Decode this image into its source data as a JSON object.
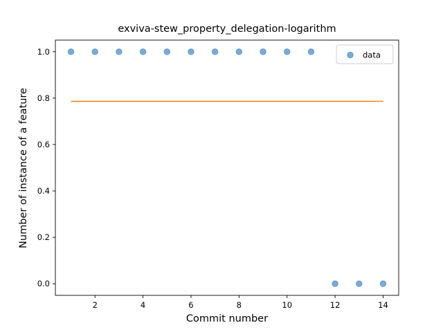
{
  "chart_data": {
    "type": "scatter",
    "title": "exviva-stew_property_delegation-logarithm",
    "xlabel": "Commit number",
    "ylabel": "Number of instance of a feature",
    "xlim": [
      0.35,
      14.65
    ],
    "ylim": [
      -0.05,
      1.05
    ],
    "xticks": [
      2,
      4,
      6,
      8,
      10,
      12,
      14
    ],
    "yticks": [
      0.0,
      0.2,
      0.4,
      0.6,
      0.8,
      1.0
    ],
    "ytick_labels": [
      "0.0",
      "0.2",
      "0.4",
      "0.6",
      "0.8",
      "1.0"
    ],
    "series": [
      {
        "name": "data",
        "kind": "scatter",
        "color": "#1f77b4",
        "x": [
          1,
          2,
          3,
          4,
          5,
          6,
          7,
          8,
          9,
          10,
          11,
          12,
          13,
          14
        ],
        "y": [
          1,
          1,
          1,
          1,
          1,
          1,
          1,
          1,
          1,
          1,
          1,
          0,
          0,
          0
        ]
      },
      {
        "kind": "line",
        "color": "#ff7f0e",
        "x": [
          1,
          14
        ],
        "y": [
          0.786,
          0.786
        ]
      }
    ],
    "legend": {
      "position": "top-right",
      "entries": [
        "data"
      ]
    },
    "grid": false
  }
}
